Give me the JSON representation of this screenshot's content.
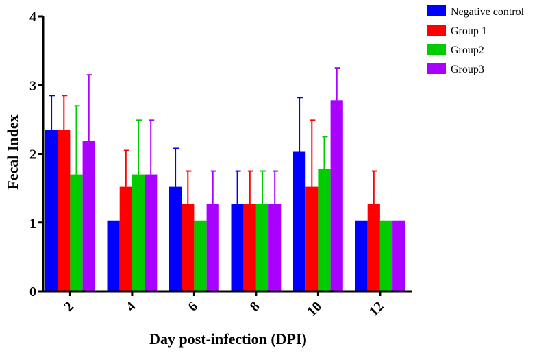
{
  "chart_data": {
    "type": "bar",
    "xlabel": "Day post-infection (DPI)",
    "ylabel": "Fecal Index",
    "ylim": [
      0,
      4
    ],
    "yticks": [
      0,
      1,
      2,
      3,
      4
    ],
    "categories": [
      "2",
      "4",
      "6",
      "8",
      "10",
      "12"
    ],
    "legend_position": "top-right",
    "grid": false,
    "series": [
      {
        "name": "Negative control",
        "color": "#0000ff",
        "values": [
          2.35,
          1.03,
          1.52,
          1.27,
          2.03,
          1.03
        ],
        "errors": [
          0.5,
          0,
          0.56,
          0.48,
          0.79,
          0
        ]
      },
      {
        "name": "Group 1",
        "color": "#ff0000",
        "values": [
          2.35,
          1.52,
          1.27,
          1.27,
          1.52,
          1.27
        ],
        "errors": [
          0.5,
          0.53,
          0.48,
          0.48,
          0.97,
          0.48
        ]
      },
      {
        "name": "Group2",
        "color": "#00cc00",
        "values": [
          1.7,
          1.7,
          1.03,
          1.27,
          1.78,
          1.03
        ],
        "errors": [
          1.0,
          0.79,
          0,
          0.48,
          0.47,
          0
        ]
      },
      {
        "name": "Group3",
        "color": "#aa00ff",
        "values": [
          2.19,
          1.7,
          1.27,
          1.27,
          2.78,
          1.03
        ],
        "errors": [
          0.96,
          0.79,
          0.48,
          0.48,
          0.47,
          0
        ]
      }
    ]
  }
}
